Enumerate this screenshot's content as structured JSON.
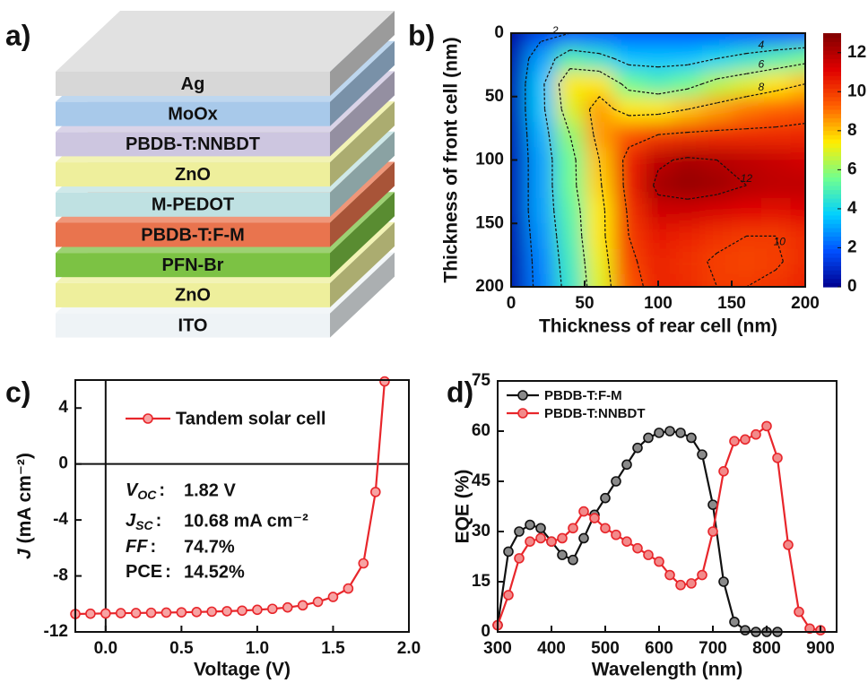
{
  "diagram": {
    "panel_label": "a)",
    "layers": [
      {
        "label": "Ag",
        "color": "#d7d7d7"
      },
      {
        "label": "MoOx",
        "color": "#a8c9ea"
      },
      {
        "label": "PBDB-T:NNBDT",
        "color": "#cdc6e0"
      },
      {
        "label": "ZnO",
        "color": "#eeef9c"
      },
      {
        "label": "M-PEDOT",
        "color": "#bfe1e2"
      },
      {
        "label": "PBDB-T:F-M",
        "color": "#e9744e"
      },
      {
        "label": "PFN-Br",
        "color": "#7cc244"
      },
      {
        "label": "ZnO",
        "color": "#eeef9c"
      },
      {
        "label": "ITO",
        "color": "#eef3f6"
      }
    ]
  },
  "chart_data": [
    {
      "type": "contour",
      "panel_label": "b)",
      "xlabel": "Thickness of rear cell (nm)",
      "ylabel": "Thickness of front cell (nm)",
      "x": [
        0,
        20,
        40,
        60,
        80,
        100,
        120,
        140,
        160,
        180,
        200
      ],
      "y": [
        0,
        20,
        40,
        60,
        80,
        100,
        120,
        140,
        160,
        180,
        200
      ],
      "z": [
        [
          0.3,
          1.5,
          2.0,
          2.0,
          2.0,
          2.0,
          2.0,
          2.0,
          2.0,
          2.0,
          2.0
        ],
        [
          0.5,
          3.0,
          5.0,
          4.5,
          3.5,
          3.5,
          3.5,
          4.0,
          4.5,
          5.0,
          5.5
        ],
        [
          0.6,
          3.5,
          7.5,
          7.5,
          5.5,
          5.0,
          5.5,
          6.5,
          7.0,
          7.5,
          8.0
        ],
        [
          0.6,
          3.5,
          7.0,
          8.5,
          7.5,
          7.5,
          8.0,
          8.5,
          9.0,
          9.3,
          9.5
        ],
        [
          0.6,
          3.2,
          6.0,
          8.5,
          9.5,
          10.0,
          10.2,
          10.3,
          10.3,
          10.3,
          10.4
        ],
        [
          0.6,
          3.0,
          5.5,
          8.0,
          10.5,
          11.8,
          12.2,
          12.0,
          11.8,
          11.6,
          11.4
        ],
        [
          0.6,
          3.0,
          5.5,
          7.8,
          10.5,
          12.3,
          12.6,
          12.4,
          12.0,
          11.8,
          11.8
        ],
        [
          0.6,
          3.0,
          5.2,
          7.5,
          10.2,
          11.5,
          11.5,
          11.3,
          11.1,
          11.0,
          11.2
        ],
        [
          0.5,
          2.8,
          5.0,
          7.5,
          10.0,
          10.8,
          10.5,
          10.2,
          10.0,
          10.0,
          10.3
        ],
        [
          0.5,
          2.6,
          4.8,
          7.2,
          9.8,
          10.5,
          10.2,
          9.9,
          9.8,
          9.9,
          10.3
        ],
        [
          0.5,
          2.5,
          4.6,
          7.0,
          9.5,
          10.5,
          10.3,
          10.0,
          10.0,
          10.2,
          10.5
        ]
      ],
      "xlim": [
        0,
        200
      ],
      "ylim": [
        200,
        0
      ],
      "xticks": [
        0,
        50,
        100,
        150,
        200
      ],
      "yticks": [
        0,
        50,
        100,
        150,
        200
      ],
      "contour_levels": [
        2,
        4,
        6,
        8,
        10,
        12
      ],
      "zlim": [
        0,
        13
      ],
      "zticks": [
        0,
        2,
        4,
        6,
        8,
        10,
        12
      ],
      "colormap": [
        "#00008f",
        "#0050ff",
        "#00d0ff",
        "#70ff90",
        "#ffee00",
        "#ff6000",
        "#e00000",
        "#800000"
      ]
    },
    {
      "type": "line",
      "panel_label": "c)",
      "xlabel": "Voltage (V)",
      "ylabel": {
        "symbol": "J",
        "unit": " (mA cm⁻²)"
      },
      "xlim": [
        -0.2,
        2.0
      ],
      "ylim": [
        -12,
        6
      ],
      "xticks": [
        {
          "value": 0,
          "label": "0.0"
        },
        0.5,
        {
          "value": 1,
          "label": "1.0"
        },
        1.5,
        {
          "value": 2,
          "label": "2.0"
        }
      ],
      "yticks": [
        -12,
        -8,
        -4,
        0,
        4
      ],
      "zero_lines": true,
      "legend": "upper left",
      "series": [
        {
          "name": "Tandem solar cell",
          "color": "#e8262b",
          "marker_face": "#f7a3a3",
          "x": [
            -0.2,
            -0.1,
            0,
            0.1,
            0.2,
            0.3,
            0.4,
            0.5,
            0.6,
            0.7,
            0.8,
            0.9,
            1.0,
            1.1,
            1.2,
            1.3,
            1.4,
            1.5,
            1.6,
            1.7,
            1.78,
            1.84
          ],
          "values": [
            -10.72,
            -10.7,
            -10.68,
            -10.66,
            -10.65,
            -10.63,
            -10.62,
            -10.6,
            -10.58,
            -10.55,
            -10.52,
            -10.48,
            -10.42,
            -10.35,
            -10.25,
            -10.1,
            -9.85,
            -9.5,
            -8.9,
            -7.1,
            -2.0,
            5.9
          ]
        }
      ],
      "annotations": [
        {
          "symbol": "V",
          "sub": "OC",
          "sep": ":",
          "italic": true,
          "text": "1.82 V"
        },
        {
          "symbol": "J",
          "sub": "SC",
          "sep": ":",
          "italic": true,
          "text": "10.68 mA cm⁻²"
        },
        {
          "symbol": "FF",
          "sep": ":",
          "italic": true,
          "text": "74.7%"
        },
        {
          "symbol": "PCE",
          "sep": ":",
          "italic": false,
          "text": "14.52%"
        }
      ]
    },
    {
      "type": "line",
      "panel_label": "d)",
      "xlabel": "Wavelength (nm)",
      "ylabel": "EQE (%)",
      "xlim": [
        300,
        930
      ],
      "ylim": [
        0,
        75
      ],
      "xticks": [
        300,
        400,
        500,
        600,
        700,
        800,
        900
      ],
      "yticks": [
        0,
        15,
        30,
        45,
        60,
        75
      ],
      "legend": "upper left",
      "series": [
        {
          "name": "PBDB-T:F-M",
          "color": "#111111",
          "marker_face": "#8a8a8a",
          "x": [
            300,
            320,
            340,
            360,
            380,
            400,
            420,
            440,
            460,
            480,
            500,
            520,
            540,
            560,
            580,
            600,
            620,
            640,
            660,
            680,
            700,
            720,
            740,
            760,
            780,
            800,
            820
          ],
          "values": [
            2,
            24,
            30,
            32,
            31,
            27,
            23,
            21.5,
            28,
            35,
            40,
            45,
            50,
            55,
            58,
            59.5,
            60,
            59.5,
            58,
            53,
            38,
            15,
            3,
            0.5,
            0,
            0,
            0
          ]
        },
        {
          "name": "PBDB-T:NNBDT",
          "color": "#e8262b",
          "marker_face": "#f28a8a",
          "x": [
            300,
            320,
            340,
            360,
            380,
            400,
            420,
            440,
            460,
            480,
            500,
            520,
            540,
            560,
            580,
            600,
            620,
            640,
            660,
            680,
            700,
            720,
            740,
            760,
            780,
            800,
            820,
            840,
            860,
            880,
            900
          ],
          "values": [
            2,
            11,
            22,
            27,
            28,
            27,
            28,
            31,
            36,
            34,
            31,
            29,
            27,
            25,
            23,
            21,
            17,
            14,
            14.5,
            17,
            30,
            48,
            57,
            57.5,
            59,
            61.5,
            52,
            26,
            6,
            1,
            0.5
          ]
        }
      ]
    }
  ]
}
